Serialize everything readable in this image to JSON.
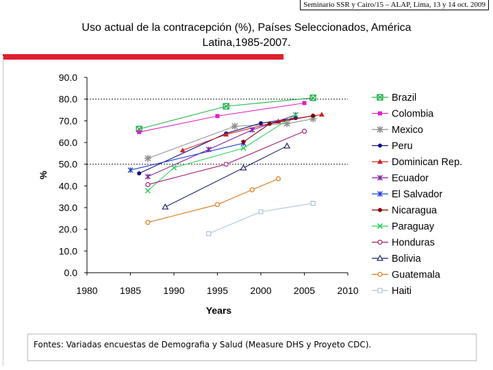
{
  "header": "Seminario SSR y Cairo/15 – ALAP, Lima, 13 y 14 oct. 2009",
  "title_line1": "Uso actual de la contracepción (%), Países Seleccionados, América",
  "title_line2": "Latina,1985-2007.",
  "source": "Fontes: Variadas encuestas de Demografia y Salud (Measure DHS y Proyeto CDC).",
  "chart_data": {
    "type": "line",
    "title": "Uso actual de la contracepción (%), Países Seleccionados, América Latina,1985-2007.",
    "xlabel": "Years",
    "ylabel": "%",
    "xlim": [
      1980,
      2010
    ],
    "ylim": [
      0,
      90
    ],
    "xticks": [
      "1980",
      "1985",
      "1990",
      "1995",
      "2000",
      "2005",
      "2010"
    ],
    "yticks": [
      "0.0",
      "10.0",
      "20.0",
      "30.0",
      "40.0",
      "50.0",
      "60.0",
      "70.0",
      "80.0",
      "90.0"
    ],
    "reference_lines": [
      50,
      80
    ],
    "series": [
      {
        "name": "Brazil",
        "color": "#22b34a",
        "marker": "boxx",
        "points": [
          [
            1986,
            66.2
          ],
          [
            1996,
            76.7
          ],
          [
            2006,
            80.6
          ]
        ]
      },
      {
        "name": "Colombia",
        "color": "#e020c8",
        "marker": "square",
        "points": [
          [
            1986,
            64.8
          ],
          [
            1995,
            72.2
          ],
          [
            2005,
            78.2
          ]
        ]
      },
      {
        "name": "Mexico",
        "color": "#909090",
        "marker": "star",
        "points": [
          [
            1987,
            52.7
          ],
          [
            1997,
            67.5
          ],
          [
            2003,
            68.7
          ],
          [
            2006,
            70.9
          ]
        ]
      },
      {
        "name": "Peru",
        "color": "#101080",
        "marker": "circle",
        "points": [
          [
            1986,
            45.8
          ],
          [
            1996,
            64.2
          ],
          [
            2000,
            68.9
          ],
          [
            2004,
            71.3
          ]
        ]
      },
      {
        "name": "Dominican Rep.",
        "color": "#d42020",
        "marker": "triangle",
        "points": [
          [
            1991,
            56.4
          ],
          [
            1996,
            63.7
          ],
          [
            2002,
            69.8
          ],
          [
            2007,
            72.9
          ]
        ]
      },
      {
        "name": "Ecuador",
        "color": "#8020a0",
        "marker": "asterisk",
        "points": [
          [
            1987,
            44.3
          ],
          [
            1994,
            56.8
          ],
          [
            1999,
            65.8
          ],
          [
            2004,
            72.7
          ]
        ]
      },
      {
        "name": "El Salvador",
        "color": "#2040d0",
        "marker": "asterisk",
        "points": [
          [
            1985,
            47.3
          ],
          [
            1998,
            59.7
          ]
        ]
      },
      {
        "name": "Nicaragua",
        "color": "#800000",
        "marker": "circle",
        "points": [
          [
            1998,
            60.3
          ],
          [
            2001,
            68.6
          ],
          [
            2006,
            72.4
          ]
        ]
      },
      {
        "name": "Paraguay",
        "color": "#30d060",
        "marker": "x",
        "points": [
          [
            1987,
            37.8
          ],
          [
            1990,
            48.4
          ],
          [
            1998,
            57.4
          ],
          [
            2004,
            72.8
          ]
        ]
      },
      {
        "name": "Honduras",
        "color": "#a02070",
        "marker": "circle-open",
        "points": [
          [
            1987,
            40.6
          ],
          [
            1996,
            50.0
          ],
          [
            2005,
            65.2
          ]
        ]
      },
      {
        "name": "Bolivia",
        "color": "#1c2060",
        "marker": "tri-open",
        "points": [
          [
            1989,
            30.3
          ],
          [
            1998,
            48.3
          ],
          [
            2003,
            58.4
          ]
        ]
      },
      {
        "name": "Guatemala",
        "color": "#e07818",
        "marker": "circle-open",
        "points": [
          [
            1987,
            23.2
          ],
          [
            1995,
            31.4
          ],
          [
            1999,
            38.2
          ],
          [
            2002,
            43.3
          ]
        ]
      },
      {
        "name": "Haiti",
        "color": "#a8c4d4",
        "marker": "square-open",
        "points": [
          [
            1994,
            18.0
          ],
          [
            2000,
            28.1
          ],
          [
            2006,
            32.0
          ]
        ]
      }
    ]
  }
}
